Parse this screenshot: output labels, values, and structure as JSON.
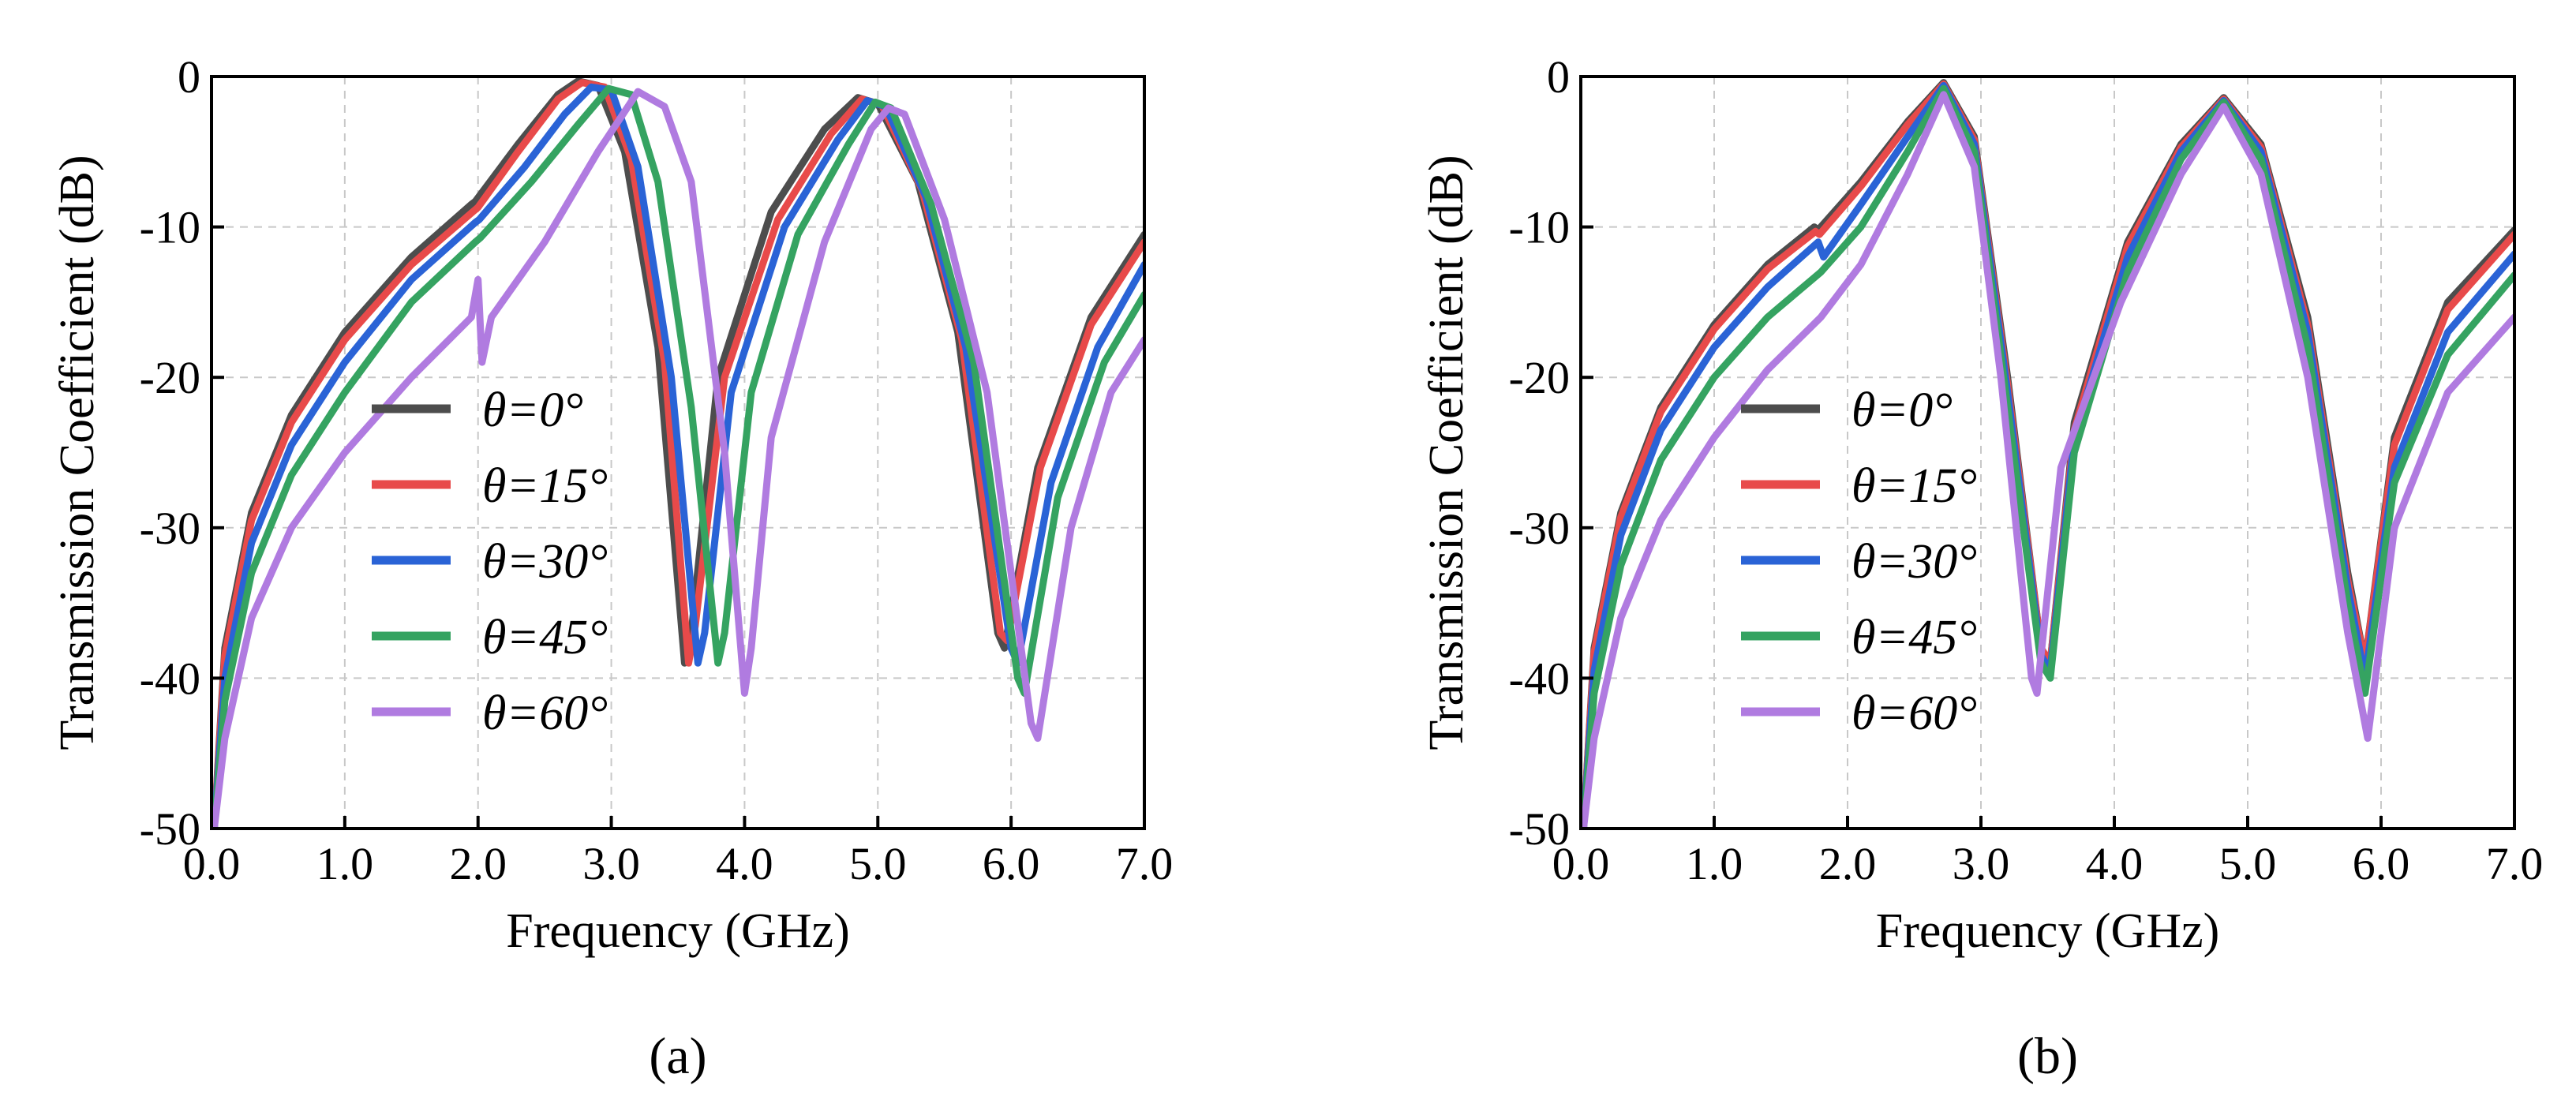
{
  "colors": {
    "theta0": "#4d4d4d",
    "theta15": "#e84a4a",
    "theta30": "#2a63d6",
    "theta45": "#35a361",
    "theta60": "#b07be0",
    "grid": "#c8c8c8",
    "axis": "#000000"
  },
  "chart_data": [
    {
      "type": "line",
      "panel_label": "(a)",
      "xlabel": "Frequency (GHz)",
      "ylabel": "Transmission Coefficient (dB)",
      "xlim": [
        0,
        7
      ],
      "ylim": [
        -50,
        0
      ],
      "x_ticks": [
        "0.0",
        "1.0",
        "2.0",
        "3.0",
        "4.0",
        "5.0",
        "6.0",
        "7.0"
      ],
      "x_tick_values": [
        0,
        1,
        2,
        3,
        4,
        5,
        6,
        7
      ],
      "y_ticks": [
        "0",
        "-10",
        "-20",
        "-30",
        "-40",
        "-50"
      ],
      "y_tick_values": [
        0,
        -10,
        -20,
        -30,
        -40,
        -50
      ],
      "grid": true,
      "legend_position": "lower-left",
      "series": [
        {
          "name": "θ=0°",
          "color_key": "theta0",
          "x": [
            0.02,
            0.1,
            0.3,
            0.6,
            1.0,
            1.5,
            1.95,
            1.98,
            2.3,
            2.6,
            2.75,
            2.9,
            3.1,
            3.35,
            3.55,
            3.6,
            3.8,
            4.2,
            4.6,
            4.85,
            5.0,
            5.3,
            5.6,
            5.9,
            5.95,
            6.2,
            6.6,
            7.0
          ],
          "y": [
            -50,
            -38,
            -29,
            -22.5,
            -17,
            -12,
            -8.5,
            -8.3,
            -4.5,
            -1.2,
            -0.3,
            -0.6,
            -5,
            -18,
            -39,
            -37,
            -20,
            -9,
            -3.5,
            -1.4,
            -1.8,
            -7,
            -17,
            -37,
            -38,
            -26,
            -16,
            -10.5
          ]
        },
        {
          "name": "θ=15°",
          "color_key": "theta15",
          "x": [
            0.02,
            0.1,
            0.3,
            0.6,
            1.0,
            1.5,
            1.96,
            2.0,
            2.3,
            2.6,
            2.78,
            2.95,
            3.15,
            3.4,
            3.58,
            3.63,
            3.85,
            4.25,
            4.65,
            4.88,
            5.03,
            5.33,
            5.63,
            5.92,
            5.97,
            6.22,
            6.6,
            7.0
          ],
          "y": [
            -50,
            -38.5,
            -29.5,
            -23,
            -17.5,
            -12.5,
            -9,
            -8.7,
            -5,
            -1.5,
            -0.4,
            -0.7,
            -5.5,
            -19,
            -39,
            -36.5,
            -20,
            -9.5,
            -3.8,
            -1.5,
            -1.9,
            -7.5,
            -17.5,
            -37,
            -37.5,
            -26,
            -16.5,
            -11
          ]
        },
        {
          "name": "θ=30°",
          "color_key": "theta30",
          "x": [
            0.02,
            0.1,
            0.3,
            0.6,
            1.0,
            1.5,
            1.98,
            2.01,
            2.35,
            2.65,
            2.85,
            3.0,
            3.2,
            3.45,
            3.65,
            3.7,
            3.9,
            4.3,
            4.7,
            4.92,
            5.06,
            5.36,
            5.66,
            6.0,
            6.05,
            6.3,
            6.65,
            7.0
          ],
          "y": [
            -50,
            -40,
            -31,
            -24.5,
            -19,
            -13.5,
            -9.7,
            -9.5,
            -6,
            -2.5,
            -0.7,
            -0.9,
            -6,
            -20,
            -39,
            -37,
            -21,
            -10,
            -4.2,
            -1.6,
            -2,
            -8,
            -18,
            -38,
            -39,
            -27,
            -18,
            -12.5
          ]
        },
        {
          "name": "θ=45°",
          "color_key": "theta45",
          "x": [
            0.02,
            0.1,
            0.3,
            0.6,
            1.0,
            1.5,
            1.98,
            2.02,
            2.4,
            2.75,
            2.98,
            3.15,
            3.35,
            3.6,
            3.8,
            3.85,
            4.05,
            4.4,
            4.78,
            4.98,
            5.1,
            5.4,
            5.72,
            6.05,
            6.1,
            6.35,
            6.7,
            7.0
          ],
          "y": [
            -50,
            -41.5,
            -33,
            -26.5,
            -21,
            -15,
            -11,
            -10.7,
            -7,
            -3.2,
            -0.8,
            -1.2,
            -7,
            -22,
            -39,
            -37,
            -21,
            -10.5,
            -4.5,
            -1.7,
            -2.1,
            -8.5,
            -19,
            -40,
            -41,
            -28,
            -19,
            -14.5
          ]
        },
        {
          "name": "θ=60°",
          "color_key": "theta60",
          "x": [
            0.02,
            0.1,
            0.3,
            0.6,
            1.0,
            1.5,
            1.95,
            2.0,
            2.03,
            2.1,
            2.5,
            2.9,
            3.2,
            3.4,
            3.6,
            3.85,
            4.0,
            4.05,
            4.2,
            4.6,
            4.95,
            5.08,
            5.2,
            5.5,
            5.82,
            6.15,
            6.2,
            6.45,
            6.75,
            7.0
          ],
          "y": [
            -50,
            -44,
            -36,
            -30,
            -25,
            -20,
            -16,
            -13.5,
            -19,
            -16,
            -11,
            -5,
            -1,
            -2,
            -7,
            -25,
            -41,
            -38,
            -24,
            -11,
            -3.5,
            -2.1,
            -2.5,
            -9.5,
            -21,
            -43,
            -44,
            -30,
            -21,
            -17.5
          ]
        }
      ],
      "legend": [
        {
          "label": "θ=0°",
          "color_key": "theta0"
        },
        {
          "label": "θ=15°",
          "color_key": "theta15"
        },
        {
          "label": "θ=30°",
          "color_key": "theta30"
        },
        {
          "label": "θ=45°",
          "color_key": "theta45"
        },
        {
          "label": "θ=60°",
          "color_key": "theta60"
        }
      ]
    },
    {
      "type": "line",
      "panel_label": "(b)",
      "xlabel": "Frequency (GHz)",
      "ylabel": "Transmission Coefficient (dB)",
      "xlim": [
        0,
        7
      ],
      "ylim": [
        -50,
        0
      ],
      "x_ticks": [
        "0.0",
        "1.0",
        "2.0",
        "3.0",
        "4.0",
        "5.0",
        "6.0",
        "7.0"
      ],
      "x_tick_values": [
        0,
        1,
        2,
        3,
        4,
        5,
        6,
        7
      ],
      "y_ticks": [
        "0",
        "-10",
        "-20",
        "-30",
        "-40",
        "-50"
      ],
      "y_tick_values": [
        0,
        -10,
        -20,
        -30,
        -40,
        -50
      ],
      "grid": true,
      "legend_position": "lower-left",
      "series": [
        {
          "name": "θ=0°",
          "color_key": "theta0",
          "x": [
            0.02,
            0.1,
            0.3,
            0.6,
            1.0,
            1.4,
            1.75,
            1.78,
            2.1,
            2.45,
            2.72,
            2.95,
            3.2,
            3.45,
            3.52,
            3.7,
            4.1,
            4.5,
            4.82,
            5.1,
            5.45,
            5.75,
            5.88,
            6.1,
            6.5,
            7.0
          ],
          "y": [
            -50,
            -38,
            -29,
            -22,
            -16.5,
            -12.5,
            -10,
            -10.2,
            -7,
            -3,
            -0.4,
            -4,
            -20,
            -38,
            -39,
            -23,
            -11,
            -4.5,
            -1.4,
            -4.5,
            -16,
            -33,
            -39,
            -24,
            -15,
            -10.2
          ]
        },
        {
          "name": "θ=15°",
          "color_key": "theta15",
          "x": [
            0.02,
            0.1,
            0.3,
            0.6,
            1.0,
            1.4,
            1.76,
            1.79,
            2.1,
            2.45,
            2.72,
            2.95,
            3.2,
            3.45,
            3.52,
            3.7,
            4.1,
            4.5,
            4.82,
            5.1,
            5.45,
            5.75,
            5.88,
            6.1,
            6.5,
            7.0
          ],
          "y": [
            -50,
            -38.3,
            -29.3,
            -22.3,
            -16.8,
            -12.8,
            -10.3,
            -10.5,
            -7.3,
            -3.2,
            -0.5,
            -4.2,
            -20.5,
            -38,
            -39,
            -23.5,
            -11.3,
            -4.7,
            -1.5,
            -4.7,
            -16.5,
            -33.5,
            -39,
            -24.5,
            -15.5,
            -10.5
          ]
        },
        {
          "name": "θ=30°",
          "color_key": "theta30",
          "x": [
            0.02,
            0.1,
            0.3,
            0.6,
            1.0,
            1.4,
            1.78,
            1.82,
            2.1,
            2.45,
            2.72,
            2.95,
            3.2,
            3.45,
            3.52,
            3.7,
            4.1,
            4.5,
            4.82,
            5.1,
            5.45,
            5.75,
            5.88,
            6.1,
            6.5,
            7.0
          ],
          "y": [
            -50,
            -39.5,
            -30.5,
            -23.5,
            -18,
            -14,
            -11,
            -12,
            -8.5,
            -4,
            -0.6,
            -4.5,
            -21,
            -38.5,
            -39.5,
            -24,
            -12,
            -5,
            -1.6,
            -5,
            -17,
            -34,
            -40,
            -26,
            -17,
            -11.8
          ]
        },
        {
          "name": "θ=45°",
          "color_key": "theta45",
          "x": [
            0.02,
            0.1,
            0.3,
            0.6,
            1.0,
            1.4,
            1.8,
            2.1,
            2.45,
            2.72,
            2.95,
            3.2,
            3.45,
            3.52,
            3.7,
            4.1,
            4.5,
            4.82,
            5.1,
            5.45,
            5.75,
            5.88,
            6.1,
            6.5,
            7.0
          ],
          "y": [
            -50,
            -41,
            -32.5,
            -25.5,
            -20,
            -16,
            -13,
            -10,
            -5,
            -0.8,
            -5,
            -22,
            -39,
            -40,
            -25,
            -13,
            -5.5,
            -1.7,
            -5.5,
            -18,
            -35,
            -41,
            -27,
            -18.5,
            -13.2
          ]
        },
        {
          "name": "θ=60°",
          "color_key": "theta60",
          "x": [
            0.02,
            0.1,
            0.3,
            0.6,
            1.0,
            1.4,
            1.8,
            2.1,
            2.45,
            2.72,
            2.95,
            3.15,
            3.38,
            3.42,
            3.6,
            4.05,
            4.5,
            4.82,
            5.1,
            5.45,
            5.75,
            5.9,
            6.1,
            6.5,
            7.0
          ],
          "y": [
            -50,
            -44,
            -36,
            -29.5,
            -24,
            -19.5,
            -16,
            -12.5,
            -6.5,
            -1.2,
            -6,
            -20,
            -40,
            -41,
            -26,
            -15,
            -6.5,
            -2,
            -6.5,
            -20,
            -37,
            -44,
            -30,
            -21,
            -16
          ]
        }
      ],
      "legend": [
        {
          "label": "θ=0°",
          "color_key": "theta0"
        },
        {
          "label": "θ=15°",
          "color_key": "theta15"
        },
        {
          "label": "θ=30°",
          "color_key": "theta30"
        },
        {
          "label": "θ=45°",
          "color_key": "theta45"
        },
        {
          "label": "θ=60°",
          "color_key": "theta60"
        }
      ]
    }
  ]
}
